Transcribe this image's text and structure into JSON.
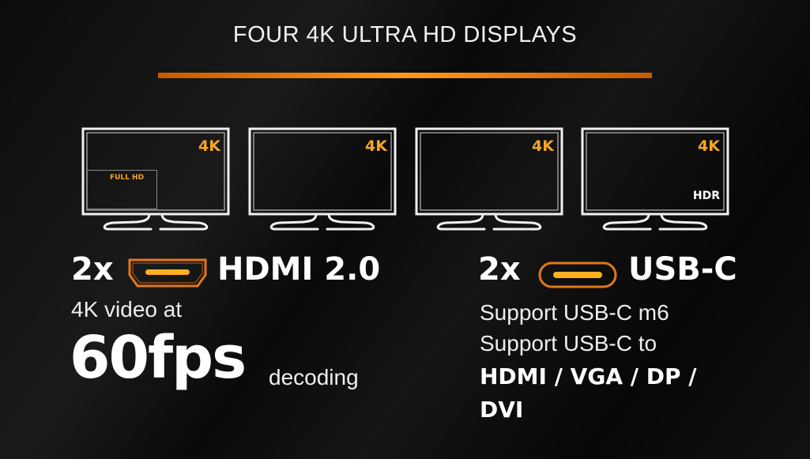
{
  "title": "FOUR 4K ULTRA HD DISPLAYS",
  "accent_color": "#f5a623",
  "monitors": [
    {
      "resolution": "4K",
      "inset_label": "FULL HD"
    },
    {
      "resolution": "4K"
    },
    {
      "resolution": "4K"
    },
    {
      "resolution": "4K",
      "badge": "HDR"
    }
  ],
  "hdmi": {
    "count": "2x",
    "icon": "hdmi-port-icon",
    "label": "HDMI 2.0",
    "line1": "4K video at",
    "highlight": "60fps",
    "suffix": "decoding"
  },
  "usbc": {
    "count": "2x",
    "icon": "usb-c-port-icon",
    "label": "USB-C",
    "line1": "Support USB-C m6",
    "line2": "Support USB-C to",
    "line3": "HDMI / VGA / DP /",
    "line4": "DVI"
  }
}
